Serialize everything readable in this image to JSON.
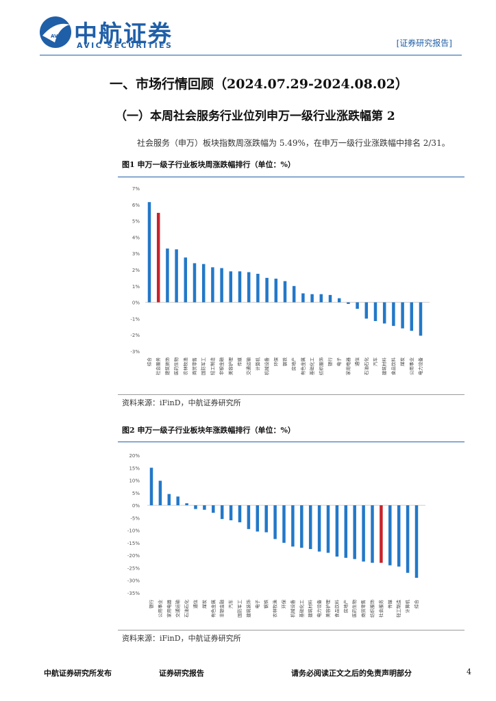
{
  "header": {
    "logo_cn": "中航证券",
    "logo_en": "AVIC SECURITIES",
    "logo_badge": "AVIC",
    "report_tag": "[证券研究报告]"
  },
  "section": {
    "title": "一、市场行情回顾（2024.07.29-2024.08.02）",
    "subtitle": "（一）本周社会服务行业位列申万一级行业涨跌幅第 2",
    "paragraph": "社会服务（申万）板块指数周涨跌幅为 5.49%，在申万一级行业涨跌幅中排名 2/31。"
  },
  "figure1": {
    "caption": "图1  申万一级子行业板块周涨跌幅排行（单位：%）",
    "source": "资料来源：iFinD，中航证券研究所"
  },
  "figure2": {
    "caption": "图2  申万一级子行业板块年涨跌幅排行（单位：%）",
    "source": "资料来源：iFinD，中航证券研究所"
  },
  "footer": {
    "left": "中航证券研究所发布",
    "middle": "证券研究报告",
    "right": "请务必阅读正文之后的免责声明部分",
    "page": "4"
  },
  "colors": {
    "bar": "#2378c8",
    "highlight": "#c8232b",
    "brand": "#1f5fa8"
  },
  "chart_data": [
    {
      "type": "bar",
      "title": "申万一级子行业板块周涨跌幅排行（单位：%）",
      "ylim": [
        -3,
        7
      ],
      "yticks": [
        "7%",
        "6%",
        "5%",
        "4%",
        "3%",
        "2%",
        "1%",
        "0%",
        "-1%",
        "-2%",
        "-3%"
      ],
      "categories": [
        "综合",
        "社会服务",
        "建筑装饰",
        "医药生物",
        "农林牧渔",
        "商贸零售",
        "国防军工",
        "轻工制造",
        "非银金融",
        "美容护理",
        "传媒",
        "交通运输",
        "计算机",
        "机械设备",
        "环保",
        "钢铁",
        "房地产",
        "有色金属",
        "基础化工",
        "纺织服饰",
        "银行",
        "电子",
        "家用电器",
        "通信",
        "石油石化",
        "汽车",
        "建筑材料",
        "食品饮料",
        "煤炭",
        "公用事业",
        "电力设备"
      ],
      "values": [
        6.15,
        5.49,
        3.3,
        3.25,
        2.75,
        2.4,
        2.35,
        2.15,
        2.1,
        1.9,
        1.9,
        1.85,
        1.75,
        1.5,
        1.45,
        1.3,
        1.0,
        0.55,
        0.5,
        0.5,
        0.45,
        0.25,
        -0.1,
        -0.4,
        -1.0,
        -1.15,
        -1.3,
        -1.45,
        -1.6,
        -1.75,
        -2.05
      ],
      "highlight_index": 1
    },
    {
      "type": "bar",
      "title": "申万一级子行业板块年涨跌幅排行（单位：%）",
      "ylim": [
        -35,
        20
      ],
      "yticks": [
        "20%",
        "15%",
        "10%",
        "5%",
        "0%",
        "-5%",
        "-10%",
        "-15%",
        "-20%",
        "-25%",
        "-30%",
        "-35%"
      ],
      "categories": [
        "银行",
        "公用事业",
        "家用电器",
        "交通运输",
        "石油石化",
        "通信",
        "煤炭",
        "有色金属",
        "非银金融",
        "汽车",
        "国防军工",
        "建筑装饰",
        "电子",
        "钢铁",
        "农林牧渔",
        "环保",
        "机械设备",
        "基础化工",
        "建筑材料",
        "电力设备",
        "美容护理",
        "食品饮料",
        "房地产",
        "医药生物",
        "商贸零售",
        "纺织服饰",
        "社会服务",
        "传媒",
        "轻工制造",
        "计算机",
        "综合"
      ],
      "values": [
        15.0,
        9.8,
        4.5,
        3.5,
        0.8,
        -1.5,
        -1.8,
        -3.0,
        -5.5,
        -6.0,
        -6.8,
        -9.5,
        -10.5,
        -10.8,
        -13.5,
        -15.0,
        -16.5,
        -17.0,
        -17.5,
        -18.5,
        -19.0,
        -20.5,
        -21.0,
        -21.5,
        -22.5,
        -23.0,
        -23.0,
        -24.0,
        -24.5,
        -27.0,
        -29.0
      ],
      "highlight_index": 26
    }
  ]
}
